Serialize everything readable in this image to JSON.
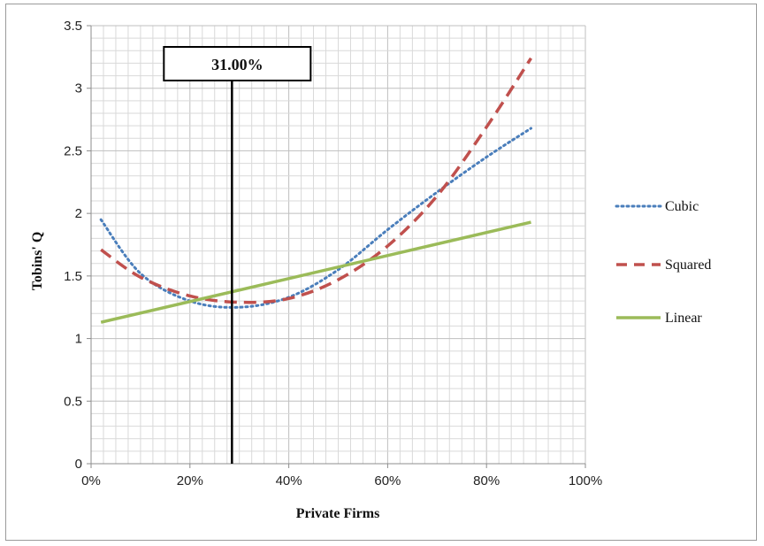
{
  "chart_data": {
    "type": "line",
    "xlabel": "Private Firms",
    "ylabel": "Tobins' Q",
    "xlim": [
      0,
      1
    ],
    "ylim": [
      0,
      3.5
    ],
    "x_ticks": [
      "0%",
      "20%",
      "40%",
      "60%",
      "80%",
      "100%"
    ],
    "y_ticks": [
      "0",
      "0.5",
      "1",
      "1.5",
      "2",
      "2.5",
      "3",
      "3.5"
    ],
    "grid": true,
    "legend_position": "right",
    "annotation": {
      "label": "31.00%",
      "x": 0.285
    },
    "series": [
      {
        "name": "Cubic",
        "style": "dotted",
        "color": "#4a7ebb",
        "x": [
          0.02,
          0.1,
          0.2,
          0.3,
          0.4,
          0.5,
          0.6,
          0.7,
          0.8,
          0.89
        ],
        "y": [
          1.95,
          1.52,
          1.3,
          1.25,
          1.33,
          1.55,
          1.87,
          2.17,
          2.45,
          2.68
        ]
      },
      {
        "name": "Squared",
        "style": "dashed",
        "color": "#c0504d",
        "x": [
          0.02,
          0.1,
          0.2,
          0.3,
          0.4,
          0.5,
          0.6,
          0.7,
          0.8,
          0.89
        ],
        "y": [
          1.71,
          1.49,
          1.34,
          1.29,
          1.32,
          1.47,
          1.74,
          2.14,
          2.69,
          3.24
        ]
      },
      {
        "name": "Linear",
        "style": "solid",
        "color": "#9bbb59",
        "x": [
          0.02,
          0.89
        ],
        "y": [
          1.13,
          1.93
        ]
      }
    ]
  }
}
